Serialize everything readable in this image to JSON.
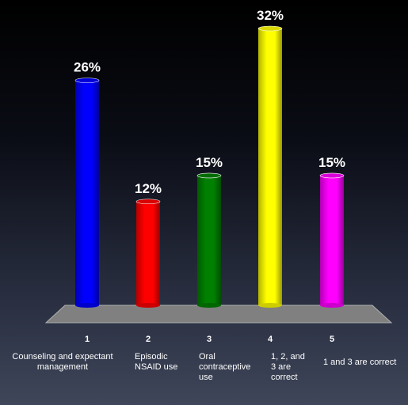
{
  "chart_data": {
    "type": "bar",
    "title": "",
    "xlabel": "",
    "ylabel": "",
    "ylim": [
      0,
      32
    ],
    "grid": false,
    "legend": "none",
    "categories": [
      "1",
      "2",
      "3",
      "4",
      "5"
    ],
    "category_labels": [
      "Counseling and expectant management",
      "Episodic NSAID use",
      "Oral contraceptive use",
      "1, 2, and 3 are correct",
      "1 and 3 are correct"
    ],
    "values": [
      26,
      12,
      15,
      32,
      15
    ],
    "value_labels": [
      "26%",
      "12%",
      "15%",
      "32%",
      "15%"
    ],
    "colors": [
      "#0000ff",
      "#ff0000",
      "#008000",
      "#ffff00",
      "#ff00ff"
    ]
  }
}
